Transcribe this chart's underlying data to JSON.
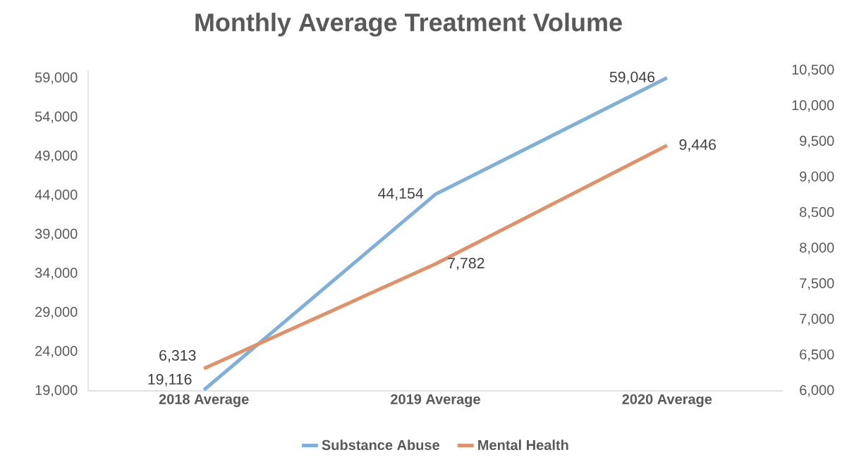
{
  "chart_data": {
    "type": "line",
    "title": "Monthly Average Treatment Volume",
    "categories": [
      "2018 Average",
      "2019 Average",
      "2020 Average"
    ],
    "series": [
      {
        "name": "Substance Abuse",
        "color": "#7fb0dc",
        "values": [
          19116,
          44154,
          59046
        ],
        "value_labels": [
          "19,116",
          "44,154",
          "59,046"
        ]
      },
      {
        "name": "Mental Health",
        "color": "#e0916a",
        "values": [
          6313,
          7782,
          9446
        ],
        "value_labels": [
          "6,313",
          "7,782",
          "9,446"
        ],
        "axis": "y2"
      }
    ],
    "ylim": [
      19000,
      60000
    ],
    "yticks": [
      {
        "value": 19000,
        "label": "19,000"
      },
      {
        "value": 24000,
        "label": "24,000"
      },
      {
        "value": 29000,
        "label": "29,000"
      },
      {
        "value": 34000,
        "label": "34,000"
      },
      {
        "value": 39000,
        "label": "39,000"
      },
      {
        "value": 44000,
        "label": "44,000"
      },
      {
        "value": 49000,
        "label": "49,000"
      },
      {
        "value": 54000,
        "label": "54,000"
      },
      {
        "value": 59000,
        "label": "59,000"
      }
    ],
    "y2lim": [
      6000,
      10500
    ],
    "y2ticks": [
      {
        "value": 6000,
        "label": "6,000"
      },
      {
        "value": 6500,
        "label": "6,500"
      },
      {
        "value": 7000,
        "label": "7,000"
      },
      {
        "value": 7500,
        "label": "7,500"
      },
      {
        "value": 8000,
        "label": "8,000"
      },
      {
        "value": 8500,
        "label": "8,500"
      },
      {
        "value": 9000,
        "label": "9,000"
      },
      {
        "value": 9500,
        "label": "9,500"
      },
      {
        "value": 10000,
        "label": "10,000"
      },
      {
        "value": 10500,
        "label": "10,500"
      }
    ],
    "legend": "bottom",
    "grid": false,
    "marker": "none",
    "line_style": "solid"
  }
}
